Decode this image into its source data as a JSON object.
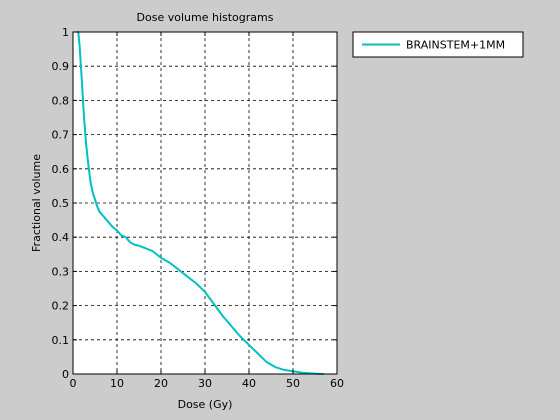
{
  "chart_data": {
    "type": "line",
    "title": "Dose volume histograms",
    "xlabel": "Dose (Gy)",
    "ylabel": "Fractional volume",
    "xlim": [
      0,
      60
    ],
    "ylim": [
      0,
      1
    ],
    "xticks": [
      0,
      10,
      20,
      30,
      40,
      50,
      60
    ],
    "yticks": [
      0,
      0.1,
      0.2,
      0.3,
      0.4,
      0.5,
      0.6,
      0.7,
      0.8,
      0.9,
      1
    ],
    "grid": true,
    "legend_position": "outside-top-right",
    "series": [
      {
        "name": "BRAINSTEM+1MM",
        "color": "#00c0c0",
        "x": [
          0.8,
          1.2,
          1.5,
          2,
          2.5,
          3,
          3.5,
          4,
          4.5,
          5,
          5.5,
          6,
          7,
          8,
          9,
          10,
          11,
          12,
          13,
          14,
          15,
          16,
          18,
          20,
          22,
          24,
          26,
          28,
          30,
          32,
          34,
          36,
          38,
          40,
          42,
          44,
          46,
          48,
          50,
          52,
          54,
          55,
          56,
          57
        ],
        "y": [
          1.0,
          1.0,
          0.96,
          0.86,
          0.75,
          0.67,
          0.61,
          0.56,
          0.53,
          0.51,
          0.49,
          0.475,
          0.46,
          0.445,
          0.43,
          0.42,
          0.405,
          0.4,
          0.385,
          0.378,
          0.375,
          0.37,
          0.36,
          0.34,
          0.325,
          0.305,
          0.285,
          0.265,
          0.24,
          0.205,
          0.17,
          0.14,
          0.11,
          0.085,
          0.06,
          0.035,
          0.02,
          0.012,
          0.008,
          0.004,
          0.002,
          0.001,
          0.0,
          0.0
        ]
      }
    ]
  }
}
